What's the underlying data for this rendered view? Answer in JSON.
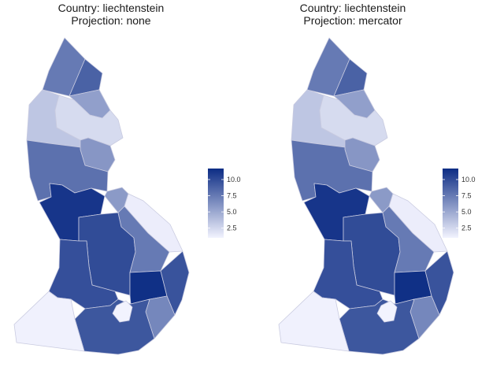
{
  "maps": [
    {
      "title_line1": "Country: liechtenstein",
      "title_line2": "Projection: none",
      "regions": [
        {
          "id": "north-tip",
          "value": 7.5
        },
        {
          "id": "north-east-small",
          "value": 8.8
        },
        {
          "id": "north-center",
          "value": 5.5
        },
        {
          "id": "north-west-edge",
          "value": 3.4
        },
        {
          "id": "north-plain",
          "value": 2.3
        },
        {
          "id": "upper-middle-east",
          "value": 6.0
        },
        {
          "id": "middle-west",
          "value": 8.0
        },
        {
          "id": "middle-link",
          "value": 5.8
        },
        {
          "id": "central-west",
          "value": 11.2
        },
        {
          "id": "east-strip",
          "value": 1.3
        },
        {
          "id": "central",
          "value": 10.0
        },
        {
          "id": "east-middle",
          "value": 7.5
        },
        {
          "id": "south-west-large",
          "value": 9.8
        },
        {
          "id": "south-east-block",
          "value": 11.5
        },
        {
          "id": "south-east-edge",
          "value": 9.6
        },
        {
          "id": "south-east-lower",
          "value": 6.8
        },
        {
          "id": "south-center",
          "value": 9.4
        },
        {
          "id": "south-west-corner",
          "value": 1.1
        },
        {
          "id": "enclave",
          "value": 1.0
        }
      ]
    },
    {
      "title_line1": "Country: liechtenstein",
      "title_line2": "Projection: mercator",
      "regions": [
        {
          "id": "north-tip",
          "value": 7.5
        },
        {
          "id": "north-east-small",
          "value": 8.8
        },
        {
          "id": "north-center",
          "value": 5.5
        },
        {
          "id": "north-west-edge",
          "value": 3.4
        },
        {
          "id": "north-plain",
          "value": 2.3
        },
        {
          "id": "upper-middle-east",
          "value": 6.0
        },
        {
          "id": "middle-west",
          "value": 8.0
        },
        {
          "id": "middle-link",
          "value": 5.8
        },
        {
          "id": "central-west",
          "value": 11.2
        },
        {
          "id": "east-strip",
          "value": 1.3
        },
        {
          "id": "central",
          "value": 10.0
        },
        {
          "id": "east-middle",
          "value": 7.5
        },
        {
          "id": "south-west-large",
          "value": 9.8
        },
        {
          "id": "south-east-block",
          "value": 11.5
        },
        {
          "id": "south-east-edge",
          "value": 9.6
        },
        {
          "id": "south-east-lower",
          "value": 6.8
        },
        {
          "id": "south-center",
          "value": 9.4
        },
        {
          "id": "south-west-corner",
          "value": 1.1
        },
        {
          "id": "enclave",
          "value": 1.0
        }
      ]
    }
  ],
  "legend": {
    "min": 1.0,
    "max": 11.7,
    "ticks": [
      2.5,
      5.0,
      7.5,
      10.0
    ],
    "tick_labels": [
      "2.5",
      "5.0",
      "7.5",
      "10.0"
    ],
    "color_low": "#f2f3fe",
    "color_high": "#0c2c84"
  }
}
